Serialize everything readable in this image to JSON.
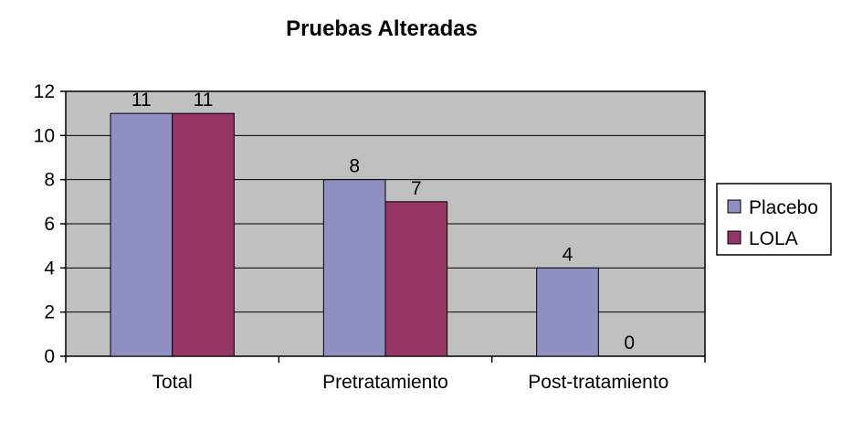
{
  "chart_data": {
    "type": "bar",
    "title": "Pruebas Alteradas",
    "xlabel": "",
    "ylabel": "",
    "categories": [
      "Total",
      "Pretratamiento",
      "Post-tratamiento"
    ],
    "series": [
      {
        "name": "Placebo",
        "values": [
          11,
          8,
          4
        ],
        "color": "#8f8fc2"
      },
      {
        "name": "LOLA",
        "values": [
          11,
          7,
          0
        ],
        "color": "#953666"
      }
    ],
    "ylim": [
      0,
      12
    ],
    "yticks": [
      "0",
      "2",
      "4",
      "6",
      "8",
      "10",
      "12"
    ],
    "grid": true,
    "plot_background": "#c0c0c0",
    "legend_position": "right"
  }
}
